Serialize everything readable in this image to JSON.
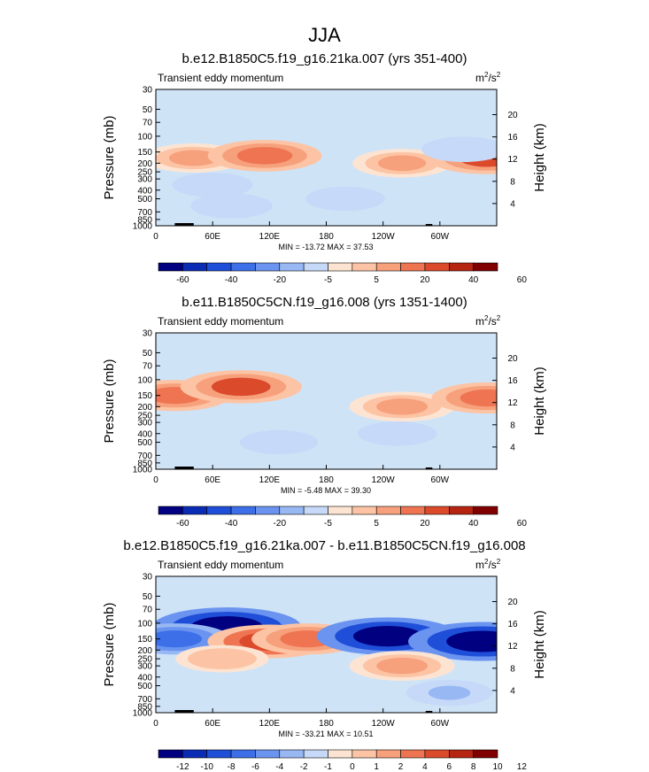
{
  "figure_title": "JJA",
  "chart_data": [
    {
      "type": "contour",
      "title": "b.e12.B1850C5.f19_g16.21ka.007 (yrs 351-400)",
      "subtitle": "Transient eddy momentum",
      "units": "m²/s²",
      "units_base": "m",
      "units_mid": "/s",
      "units_exp": "2",
      "ylabel_left": "Pressure (mb)",
      "ylabel_right": "Height (km)",
      "x_ticks": [
        "0",
        "60E",
        "120E",
        "180",
        "120W",
        "60W"
      ],
      "x_tick_lon": [
        0,
        60,
        120,
        180,
        240,
        300
      ],
      "x_range": [
        0,
        360
      ],
      "p_ticks": [
        "30",
        "50",
        "70",
        "100",
        "150",
        "200",
        "250",
        "300",
        "400",
        "500",
        "700",
        "850",
        "1000"
      ],
      "p_values": [
        30,
        50,
        70,
        100,
        150,
        200,
        250,
        300,
        400,
        500,
        700,
        850,
        1000
      ],
      "h_ticks": [
        "20",
        "16",
        "12",
        "8",
        "4"
      ],
      "h_values": [
        20,
        16,
        12,
        8,
        4
      ],
      "minmax": "MIN = -13.72  MAX =  37.53",
      "min": -13.72,
      "max": 37.53,
      "colorbar_labels": [
        "-60",
        "-40",
        "-20",
        "-5",
        "5",
        "20",
        "40",
        "60"
      ],
      "features": [
        {
          "lon": 40,
          "p": 175,
          "value": 22
        },
        {
          "lon": 115,
          "p": 165,
          "value": 32
        },
        {
          "lon": 260,
          "p": 200,
          "value": 20
        },
        {
          "lon": 350,
          "p": 175,
          "value": 35
        },
        {
          "lon": 325,
          "p": 140,
          "value": -8
        },
        {
          "lon": 60,
          "p": 350,
          "value": -5
        },
        {
          "lon": 80,
          "p": 600,
          "value": -6
        },
        {
          "lon": 200,
          "p": 500,
          "value": -4
        }
      ]
    },
    {
      "type": "contour",
      "title": "b.e11.B1850C5CN.f19_g16.008 (yrs 1351-1400)",
      "subtitle": "Transient eddy momentum",
      "units": "m²/s²",
      "units_base": "m",
      "units_mid": "/s",
      "units_exp": "2",
      "ylabel_left": "Pressure (mb)",
      "ylabel_right": "Height (km)",
      "x_ticks": [
        "0",
        "60E",
        "120E",
        "180",
        "120W",
        "60W"
      ],
      "x_tick_lon": [
        0,
        60,
        120,
        180,
        240,
        300
      ],
      "x_range": [
        0,
        360
      ],
      "p_ticks": [
        "30",
        "50",
        "70",
        "100",
        "150",
        "200",
        "250",
        "300",
        "400",
        "500",
        "700",
        "850",
        "1000"
      ],
      "p_values": [
        30,
        50,
        70,
        100,
        150,
        200,
        250,
        300,
        400,
        500,
        700,
        850,
        1000
      ],
      "h_ticks": [
        "20",
        "16",
        "12",
        "8",
        "4"
      ],
      "h_values": [
        20,
        16,
        12,
        8,
        4
      ],
      "minmax": "MIN =  -5.48  MAX =  39.30",
      "min": -5.48,
      "max": 39.3,
      "colorbar_labels": [
        "-60",
        "-40",
        "-20",
        "-5",
        "5",
        "20",
        "40",
        "60"
      ],
      "features": [
        {
          "lon": 20,
          "p": 150,
          "value": 30
        },
        {
          "lon": 90,
          "p": 120,
          "value": 38
        },
        {
          "lon": 260,
          "p": 200,
          "value": 25
        },
        {
          "lon": 350,
          "p": 160,
          "value": 30
        },
        {
          "lon": 255,
          "p": 400,
          "value": -4
        },
        {
          "lon": 130,
          "p": 500,
          "value": -3
        }
      ]
    },
    {
      "type": "contour",
      "title": "b.e12.B1850C5.f19_g16.21ka.007 - b.e11.B1850C5CN.f19_g16.008",
      "subtitle": "Transient eddy momentum",
      "units": "m²/s²",
      "units_base": "m",
      "units_mid": "/s",
      "units_exp": "2",
      "ylabel_left": "Pressure (mb)",
      "ylabel_right": "Height (km)",
      "x_ticks": [
        "0",
        "60E",
        "120E",
        "180",
        "120W",
        "60W"
      ],
      "x_tick_lon": [
        0,
        60,
        120,
        180,
        240,
        300
      ],
      "x_range": [
        0,
        360
      ],
      "p_ticks": [
        "30",
        "50",
        "70",
        "100",
        "150",
        "200",
        "250",
        "300",
        "400",
        "500",
        "700",
        "850",
        "1000"
      ],
      "p_values": [
        30,
        50,
        70,
        100,
        150,
        200,
        250,
        300,
        400,
        500,
        700,
        850,
        1000
      ],
      "h_ticks": [
        "20",
        "16",
        "12",
        "8",
        "4"
      ],
      "h_values": [
        20,
        16,
        12,
        8,
        4
      ],
      "minmax": "MIN = -33.21  MAX =  10.51",
      "min": -33.21,
      "max": 10.51,
      "colorbar_labels": [
        "-12",
        "-10",
        "-8",
        "-6",
        "-4",
        "-2",
        "-1",
        "0",
        "1",
        "2",
        "4",
        "6",
        "8",
        "10",
        "12"
      ],
      "features": [
        {
          "lon": 75,
          "p": 110,
          "value": -12
        },
        {
          "lon": 20,
          "p": 150,
          "value": -6
        },
        {
          "lon": 120,
          "p": 160,
          "value": 8
        },
        {
          "lon": 160,
          "p": 150,
          "value": 6
        },
        {
          "lon": 245,
          "p": 140,
          "value": -11
        },
        {
          "lon": 345,
          "p": 160,
          "value": -13
        },
        {
          "lon": 260,
          "p": 300,
          "value": 5
        },
        {
          "lon": 70,
          "p": 250,
          "value": 3
        },
        {
          "lon": 310,
          "p": 600,
          "value": -2
        }
      ]
    }
  ]
}
